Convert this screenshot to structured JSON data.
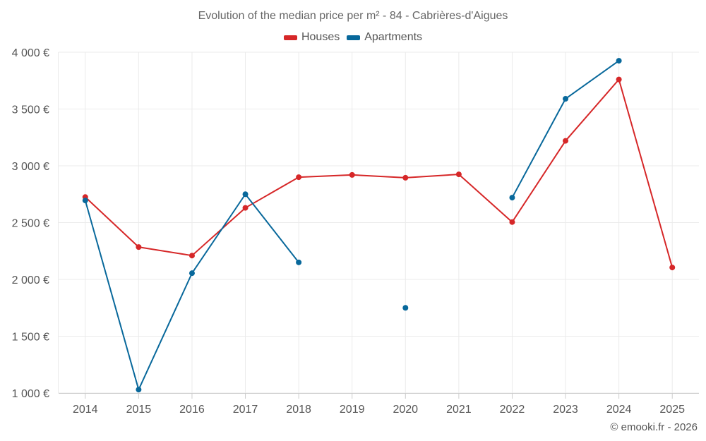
{
  "chart_data": {
    "type": "line",
    "title": "Evolution of the median price per m² - 84 - Cabrières-d'Aigues",
    "categories": [
      "2014",
      "2015",
      "2016",
      "2017",
      "2018",
      "2019",
      "2020",
      "2021",
      "2022",
      "2023",
      "2024",
      "2025"
    ],
    "ylim": [
      1000,
      4000
    ],
    "yticks": [
      1000,
      1500,
      2000,
      2500,
      3000,
      3500,
      4000
    ],
    "ytick_labels": [
      "1 000 €",
      "1 500 €",
      "2 000 €",
      "2 500 €",
      "3 000 €",
      "3 500 €",
      "4 000 €"
    ],
    "grid": true,
    "legend_position": "top-center",
    "series": [
      {
        "name": "Houses",
        "color": "#d62728",
        "values": [
          2725,
          2285,
          2210,
          2630,
          2900,
          2920,
          2895,
          2925,
          2505,
          3220,
          3760,
          2105
        ]
      },
      {
        "name": "Apartments",
        "color": "#08689b",
        "values": [
          2695,
          1030,
          2055,
          2750,
          2150,
          null,
          1750,
          null,
          2720,
          3590,
          3925,
          null
        ]
      }
    ]
  },
  "credit": "© emooki.fr - 2026"
}
